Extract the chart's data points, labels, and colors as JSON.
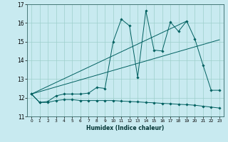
{
  "xlabel": "Humidex (Indice chaleur)",
  "xlim": [
    -0.5,
    23.5
  ],
  "ylim": [
    11,
    17
  ],
  "yticks": [
    11,
    12,
    13,
    14,
    15,
    16,
    17
  ],
  "xticks": [
    0,
    1,
    2,
    3,
    4,
    5,
    6,
    7,
    8,
    9,
    10,
    11,
    12,
    13,
    14,
    15,
    16,
    17,
    18,
    19,
    20,
    21,
    22,
    23
  ],
  "background_color": "#c8eaf0",
  "grid_color": "#9dcfcc",
  "line_color": "#006060",
  "line_min_x": [
    0,
    1,
    2,
    3,
    4,
    5,
    6,
    7,
    8,
    9,
    10,
    11,
    12,
    13,
    14,
    15,
    16,
    17,
    18,
    19,
    20,
    21,
    22,
    23
  ],
  "line_min_y": [
    12.2,
    11.75,
    11.75,
    11.85,
    11.9,
    11.9,
    11.85,
    11.85,
    11.85,
    11.85,
    11.85,
    11.82,
    11.8,
    11.78,
    11.75,
    11.73,
    11.7,
    11.68,
    11.65,
    11.63,
    11.6,
    11.55,
    11.5,
    11.45
  ],
  "line_main_x": [
    0,
    1,
    2,
    3,
    4,
    5,
    6,
    7,
    8,
    9,
    10,
    11,
    12,
    13,
    14,
    15,
    16,
    17,
    18,
    19,
    20,
    21,
    22,
    23
  ],
  "line_main_y": [
    12.2,
    11.75,
    11.8,
    12.1,
    12.2,
    12.2,
    12.2,
    12.25,
    12.55,
    12.5,
    15.0,
    16.2,
    15.85,
    13.1,
    16.65,
    14.55,
    14.5,
    16.05,
    15.55,
    16.1,
    15.15,
    13.75,
    12.4,
    12.4
  ],
  "line_trend1_x": [
    0,
    23
  ],
  "line_trend1_y": [
    12.2,
    15.1
  ],
  "line_trend2_x": [
    0,
    19
  ],
  "line_trend2_y": [
    12.2,
    16.1
  ]
}
